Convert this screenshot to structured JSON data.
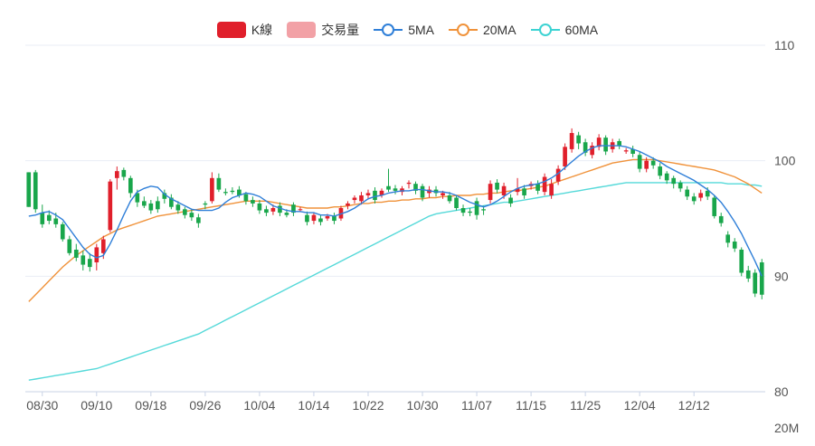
{
  "legend": [
    {
      "label": "K線",
      "kind": "rect",
      "color": "#e01f2b"
    },
    {
      "label": "交易量",
      "kind": "rect",
      "color": "#f2a1a6"
    },
    {
      "label": "5MA",
      "kind": "line",
      "color": "#2f7fd8"
    },
    {
      "label": "20MA",
      "kind": "line",
      "color": "#f0923a"
    },
    {
      "label": "60MA",
      "kind": "line",
      "color": "#3dd3d3"
    }
  ],
  "colors": {
    "up": "#e01f2b",
    "down": "#19a64b",
    "ma5": "#2f7fd8",
    "ma20": "#f0923a",
    "ma60": "#55d9d9",
    "grid": "#e9edf5",
    "axis": "#c9d3e6",
    "text": "#555555"
  },
  "chart_data": {
    "type": "candlestick",
    "ylim": [
      80,
      110
    ],
    "yticks": [
      80,
      90,
      100,
      110
    ],
    "volume_axis_label": "20M",
    "x_tick_labels": [
      "08/30",
      "09/10",
      "09/18",
      "09/26",
      "10/04",
      "10/14",
      "10/22",
      "10/30",
      "11/07",
      "11/15",
      "11/25",
      "12/04",
      "12/12"
    ],
    "x_tick_index": [
      2,
      10,
      18,
      26,
      34,
      42,
      50,
      58,
      66,
      74,
      82,
      90,
      98
    ],
    "ohlc": [
      [
        99.0,
        96.0,
        99.0,
        96.0
      ],
      [
        99.0,
        95.8,
        99.2,
        95.5
      ],
      [
        95.5,
        94.5,
        96.2,
        94.2
      ],
      [
        95.3,
        94.8,
        95.7,
        94.5
      ],
      [
        95.0,
        94.5,
        95.5,
        94.2
      ],
      [
        94.5,
        93.2,
        94.7,
        93.0
      ],
      [
        93.2,
        92.0,
        93.5,
        91.8
      ],
      [
        92.3,
        91.6,
        92.8,
        91.3
      ],
      [
        91.8,
        91.0,
        92.2,
        90.5
      ],
      [
        91.5,
        90.8,
        92.0,
        90.4
      ],
      [
        91.2,
        92.5,
        92.8,
        90.5
      ],
      [
        92.0,
        93.2,
        93.5,
        91.5
      ],
      [
        94.0,
        98.2,
        98.4,
        93.8
      ],
      [
        98.5,
        99.1,
        99.5,
        97.5
      ],
      [
        99.2,
        98.6,
        99.4,
        98.3
      ],
      [
        98.5,
        97.2,
        98.7,
        96.8
      ],
      [
        97.2,
        96.4,
        97.5,
        96.0
      ],
      [
        96.5,
        96.1,
        96.9,
        95.9
      ],
      [
        96.3,
        95.7,
        96.6,
        95.4
      ],
      [
        96.5,
        95.8,
        96.9,
        95.5
      ],
      [
        97.2,
        96.7,
        97.5,
        96.3
      ],
      [
        96.8,
        96.0,
        97.1,
        95.8
      ],
      [
        96.2,
        95.7,
        96.5,
        95.4
      ],
      [
        95.8,
        95.3,
        96.0,
        95.0
      ],
      [
        95.5,
        95.1,
        95.8,
        94.8
      ],
      [
        95.1,
        94.6,
        95.4,
        94.2
      ],
      [
        96.3,
        96.2,
        96.5,
        95.8
      ],
      [
        96.5,
        98.5,
        99.0,
        96.3
      ],
      [
        98.5,
        97.5,
        98.9,
        97.3
      ],
      [
        97.3,
        97.2,
        97.6,
        97.0
      ],
      [
        97.4,
        97.3,
        97.7,
        97.1
      ],
      [
        97.5,
        97.0,
        97.8,
        96.8
      ],
      [
        97.1,
        96.5,
        97.3,
        96.2
      ],
      [
        96.6,
        96.3,
        96.9,
        96.0
      ],
      [
        96.3,
        95.7,
        96.6,
        95.4
      ],
      [
        95.8,
        95.5,
        96.1,
        95.2
      ],
      [
        95.6,
        95.9,
        96.2,
        95.3
      ],
      [
        96.1,
        95.5,
        96.4,
        95.2
      ],
      [
        95.5,
        95.3,
        95.8,
        95.1
      ],
      [
        96.2,
        95.5,
        96.4,
        95.2
      ],
      [
        95.8,
        95.8,
        96.0,
        95.6
      ],
      [
        95.3,
        94.7,
        95.6,
        94.4
      ],
      [
        94.8,
        95.3,
        95.5,
        94.5
      ],
      [
        95.0,
        94.7,
        95.3,
        94.4
      ],
      [
        95.0,
        95.2,
        95.4,
        94.8
      ],
      [
        95.2,
        94.8,
        95.5,
        94.5
      ],
      [
        95.0,
        95.9,
        96.1,
        94.8
      ],
      [
        96.1,
        96.3,
        96.5,
        95.8
      ],
      [
        96.6,
        96.8,
        97.0,
        96.3
      ],
      [
        96.5,
        97.0,
        97.3,
        96.2
      ],
      [
        97.0,
        97.2,
        97.5,
        96.7
      ],
      [
        97.4,
        96.6,
        97.7,
        96.3
      ],
      [
        97.0,
        97.4,
        97.6,
        96.8
      ],
      [
        97.8,
        97.5,
        99.3,
        97.3
      ],
      [
        97.6,
        97.4,
        97.9,
        97.1
      ],
      [
        97.3,
        97.6,
        97.8,
        97.0
      ],
      [
        98.0,
        98.1,
        98.3,
        97.6
      ],
      [
        98.0,
        97.4,
        98.2,
        97.1
      ],
      [
        97.8,
        96.8,
        98.0,
        96.5
      ],
      [
        97.2,
        97.5,
        97.8,
        96.8
      ],
      [
        97.5,
        97.2,
        97.8,
        96.9
      ],
      [
        97.0,
        97.2,
        97.4,
        96.7
      ],
      [
        97.0,
        96.5,
        97.3,
        96.3
      ],
      [
        96.8,
        95.9,
        97.0,
        95.7
      ],
      [
        95.9,
        95.5,
        96.2,
        95.2
      ],
      [
        95.6,
        95.5,
        95.9,
        95.2
      ],
      [
        96.5,
        95.3,
        96.8,
        94.9
      ],
      [
        95.8,
        95.7,
        96.1,
        95.3
      ],
      [
        96.6,
        98.0,
        98.3,
        96.3
      ],
      [
        98.1,
        97.5,
        98.4,
        97.2
      ],
      [
        97.0,
        97.8,
        98.1,
        96.7
      ],
      [
        96.8,
        96.3,
        97.1,
        96.0
      ],
      [
        97.3,
        97.6,
        98.5,
        97.0
      ],
      [
        97.6,
        97.0,
        97.9,
        96.7
      ],
      [
        97.8,
        98.0,
        98.2,
        97.5
      ],
      [
        98.0,
        97.4,
        98.3,
        97.1
      ],
      [
        97.3,
        98.6,
        98.9,
        97.0
      ],
      [
        97.0,
        98.0,
        98.4,
        96.7
      ],
      [
        98.2,
        99.3,
        99.6,
        97.9
      ],
      [
        99.5,
        101.2,
        101.5,
        99.2
      ],
      [
        101.0,
        102.4,
        102.8,
        100.7
      ],
      [
        102.2,
        101.5,
        102.5,
        101.0
      ],
      [
        101.6,
        100.7,
        101.9,
        100.4
      ],
      [
        100.5,
        101.3,
        101.6,
        100.2
      ],
      [
        101.2,
        102.0,
        102.3,
        100.9
      ],
      [
        102.0,
        100.8,
        102.2,
        100.5
      ],
      [
        101.0,
        101.6,
        101.9,
        100.7
      ],
      [
        101.7,
        101.3,
        101.9,
        101.0
      ],
      [
        100.8,
        100.9,
        101.1,
        100.6
      ],
      [
        101.0,
        100.6,
        101.3,
        100.3
      ],
      [
        100.5,
        99.3,
        100.8,
        99.0
      ],
      [
        99.3,
        100.0,
        100.3,
        99.0
      ],
      [
        100.0,
        99.6,
        100.3,
        99.3
      ],
      [
        99.5,
        98.7,
        99.8,
        98.4
      ],
      [
        98.9,
        98.3,
        99.1,
        98.0
      ],
      [
        98.5,
        98.0,
        98.7,
        97.6
      ],
      [
        98.1,
        97.6,
        98.3,
        97.3
      ],
      [
        97.5,
        96.9,
        97.8,
        96.6
      ],
      [
        96.9,
        96.5,
        97.2,
        96.2
      ],
      [
        96.8,
        97.2,
        97.5,
        96.5
      ],
      [
        97.4,
        96.9,
        97.7,
        96.6
      ],
      [
        96.8,
        95.2,
        97.0,
        95.0
      ],
      [
        95.2,
        94.6,
        95.5,
        94.3
      ],
      [
        93.6,
        92.9,
        93.9,
        92.5
      ],
      [
        93.0,
        92.4,
        93.3,
        92.1
      ],
      [
        92.3,
        90.3,
        92.5,
        90.0
      ],
      [
        90.5,
        89.8,
        90.9,
        89.5
      ],
      [
        90.3,
        88.5,
        90.6,
        88.2
      ],
      [
        91.2,
        88.4,
        91.5,
        88.0
      ]
    ],
    "ma5": [
      95.2,
      95.3,
      95.5,
      95.6,
      95.3,
      94.9,
      94.1,
      93.3,
      92.5,
      91.9,
      91.6,
      91.8,
      92.8,
      94.0,
      95.3,
      96.5,
      97.3,
      97.6,
      97.8,
      97.7,
      97.1,
      96.7,
      96.4,
      96.1,
      95.8,
      95.7,
      95.7,
      95.7,
      95.9,
      96.4,
      96.8,
      97.0,
      97.2,
      97.1,
      96.9,
      96.5,
      96.1,
      95.9,
      95.7,
      95.6,
      95.6,
      95.5,
      95.5,
      95.3,
      95.3,
      95.2,
      95.4,
      95.6,
      95.9,
      96.3,
      96.7,
      96.9,
      97.0,
      97.2,
      97.3,
      97.4,
      97.4,
      97.5,
      97.5,
      97.4,
      97.3,
      97.3,
      97.2,
      97.0,
      96.7,
      96.4,
      96.2,
      96.0,
      96.2,
      96.5,
      96.9,
      97.3,
      97.6,
      97.8,
      97.9,
      98.0,
      98.2,
      98.5,
      98.9,
      99.4,
      99.9,
      100.4,
      100.8,
      101.1,
      101.3,
      101.3,
      101.3,
      101.3,
      101.2,
      101.0,
      100.8,
      100.5,
      100.2,
      99.9,
      99.5,
      99.2,
      98.9,
      98.6,
      98.3,
      97.9,
      97.5,
      97.0,
      96.4,
      95.6,
      94.7,
      93.7,
      92.5,
      91.3,
      90.0
    ],
    "ma20": [
      87.8,
      88.4,
      89.0,
      89.6,
      90.2,
      90.8,
      91.3,
      91.8,
      92.2,
      92.6,
      93.0,
      93.4,
      93.7,
      94.0,
      94.2,
      94.4,
      94.6,
      94.8,
      95.0,
      95.2,
      95.3,
      95.4,
      95.5,
      95.6,
      95.7,
      95.8,
      95.9,
      96.0,
      96.1,
      96.2,
      96.3,
      96.4,
      96.5,
      96.5,
      96.5,
      96.5,
      96.4,
      96.3,
      96.2,
      96.1,
      96.0,
      95.9,
      95.9,
      95.9,
      95.9,
      96.0,
      96.0,
      96.1,
      96.2,
      96.3,
      96.3,
      96.4,
      96.4,
      96.5,
      96.5,
      96.6,
      96.6,
      96.7,
      96.7,
      96.8,
      96.8,
      96.9,
      96.9,
      97.0,
      97.0,
      97.0,
      97.1,
      97.1,
      97.2,
      97.2,
      97.3,
      97.4,
      97.4,
      97.5,
      97.6,
      97.7,
      97.8,
      98.0,
      98.2,
      98.4,
      98.6,
      98.8,
      99.0,
      99.2,
      99.4,
      99.6,
      99.8,
      99.9,
      100.0,
      100.1,
      100.1,
      100.1,
      100.1,
      100.0,
      99.9,
      99.8,
      99.7,
      99.6,
      99.5,
      99.4,
      99.3,
      99.2,
      99.0,
      98.8,
      98.6,
      98.3,
      98.0,
      97.6,
      97.2
    ],
    "ma60": [
      81.0,
      81.1,
      81.2,
      81.3,
      81.4,
      81.5,
      81.6,
      81.7,
      81.8,
      81.9,
      82.0,
      82.2,
      82.4,
      82.6,
      82.8,
      83.0,
      83.2,
      83.4,
      83.6,
      83.8,
      84.0,
      84.2,
      84.4,
      84.6,
      84.8,
      85.0,
      85.3,
      85.6,
      85.9,
      86.2,
      86.5,
      86.8,
      87.1,
      87.4,
      87.7,
      88.0,
      88.3,
      88.6,
      88.9,
      89.2,
      89.5,
      89.8,
      90.1,
      90.4,
      90.7,
      91.0,
      91.3,
      91.6,
      91.9,
      92.2,
      92.5,
      92.8,
      93.1,
      93.4,
      93.7,
      94.0,
      94.3,
      94.6,
      94.9,
      95.2,
      95.4,
      95.5,
      95.6,
      95.7,
      95.8,
      95.9,
      96.0,
      96.1,
      96.2,
      96.3,
      96.4,
      96.4,
      96.5,
      96.6,
      96.7,
      96.8,
      96.9,
      97.0,
      97.1,
      97.2,
      97.3,
      97.4,
      97.5,
      97.6,
      97.7,
      97.8,
      97.9,
      98.0,
      98.1,
      98.1,
      98.1,
      98.1,
      98.1,
      98.1,
      98.1,
      98.1,
      98.1,
      98.1,
      98.1,
      98.1,
      98.1,
      98.1,
      98.1,
      98.0,
      98.0,
      98.0,
      97.9,
      97.9,
      97.8
    ]
  }
}
